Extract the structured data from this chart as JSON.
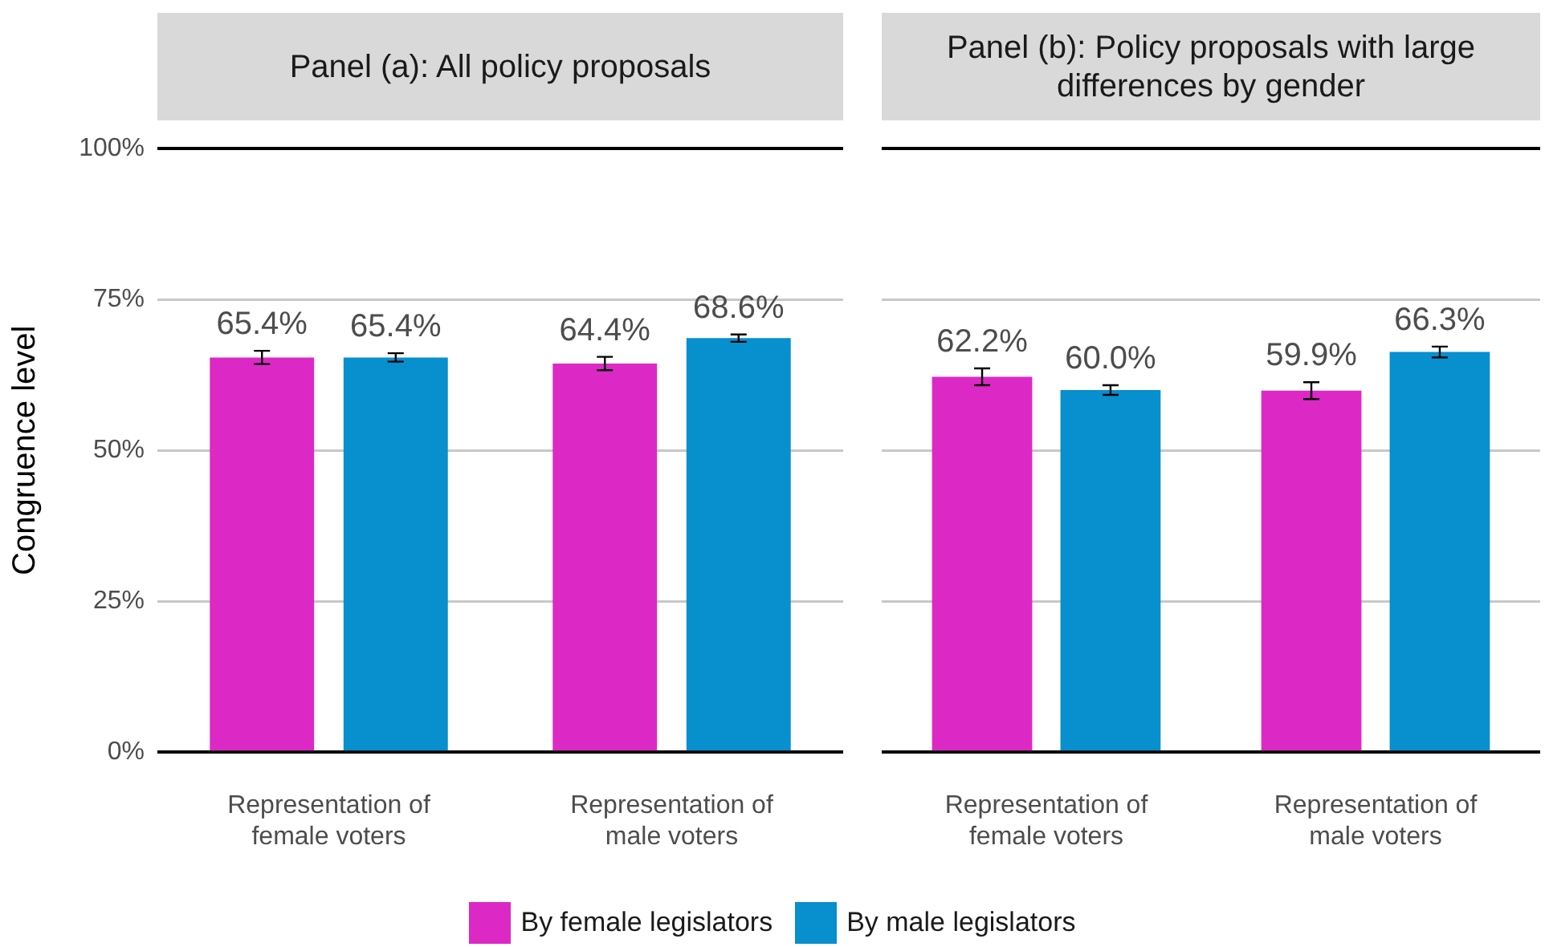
{
  "chart_data": [
    {
      "type": "bar",
      "title": "Panel (a): All policy proposals",
      "ylabel": "Congruence level",
      "categories": [
        "Representation of female voters",
        "Representation of male voters"
      ],
      "series": [
        {
          "name": "By female legislators",
          "color": "#dc29c6",
          "values": [
            65.4,
            64.4
          ],
          "errors": [
            1.1,
            1.1
          ],
          "value_labels": [
            "65.4%",
            "64.4%"
          ]
        },
        {
          "name": "By male legislators",
          "color": "#078fce",
          "values": [
            65.4,
            68.6
          ],
          "errors": [
            0.7,
            0.6
          ],
          "value_labels": [
            "65.4%",
            "68.6%"
          ]
        }
      ],
      "ylim": [
        0,
        100
      ],
      "yticks": [
        {
          "value": 0,
          "label": "0%"
        },
        {
          "value": 25,
          "label": "25%"
        },
        {
          "value": 50,
          "label": "50%"
        },
        {
          "value": 75,
          "label": "75%"
        },
        {
          "value": 100,
          "label": "100%"
        }
      ],
      "grid": "y",
      "legend": "bottom"
    },
    {
      "type": "bar",
      "title": "Panel (b): Policy proposals with large differences by gender",
      "categories": [
        "Representation of female voters",
        "Representation of male voters"
      ],
      "series": [
        {
          "color": "#dc29c6",
          "values": [
            62.2,
            59.9
          ],
          "errors": [
            1.4,
            1.4
          ],
          "value_labels": [
            "62.2%",
            "59.9%"
          ]
        },
        {
          "color": "#078fce",
          "values": [
            60.0,
            66.3
          ],
          "errors": [
            0.8,
            0.9
          ],
          "value_labels": [
            "60.0%",
            "66.3%"
          ]
        }
      ],
      "ylim": [
        0,
        100
      ],
      "yticks": [
        0,
        25,
        50,
        75,
        100
      ],
      "grid": "y",
      "tick_labels": "x"
    }
  ]
}
